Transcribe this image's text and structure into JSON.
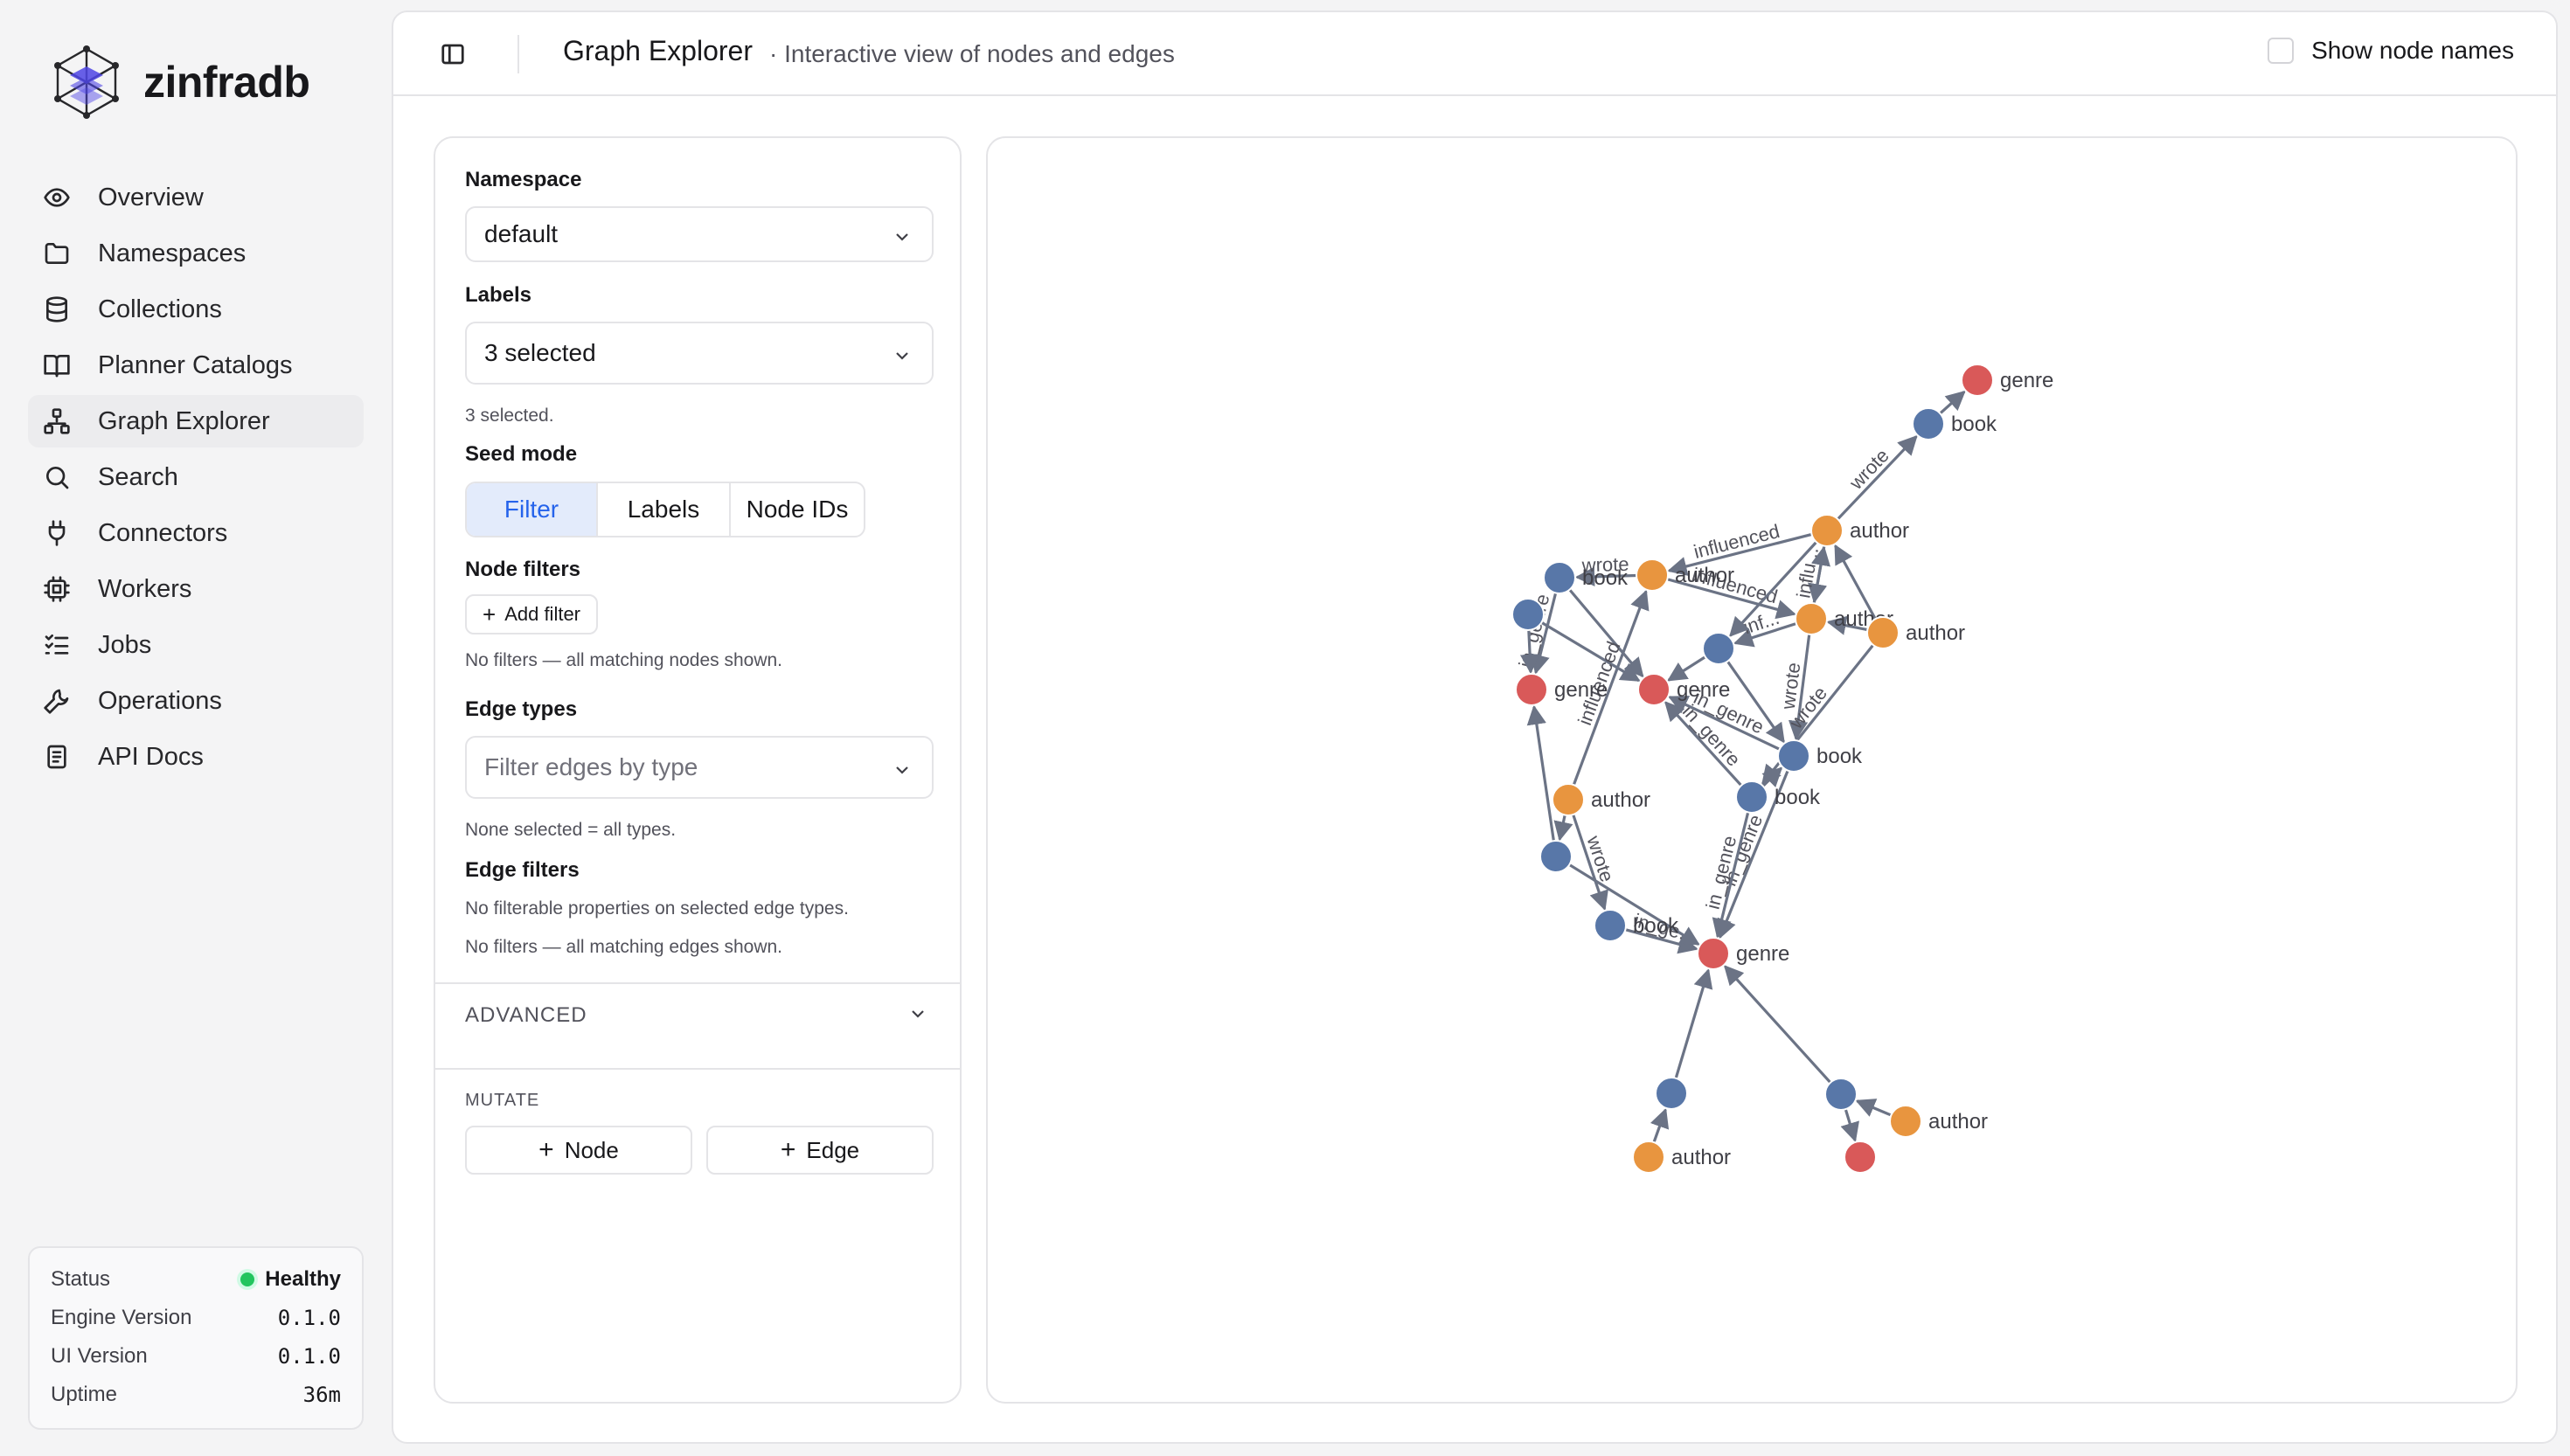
{
  "brand": {
    "name": "zinfradb"
  },
  "nav": [
    {
      "label": "Overview",
      "icon": "eye-icon"
    },
    {
      "label": "Namespaces",
      "icon": "folder-icon"
    },
    {
      "label": "Collections",
      "icon": "database-icon"
    },
    {
      "label": "Planner Catalogs",
      "icon": "book-open-icon"
    },
    {
      "label": "Graph Explorer",
      "icon": "network-icon",
      "active": true
    },
    {
      "label": "Search",
      "icon": "search-icon"
    },
    {
      "label": "Connectors",
      "icon": "plug-icon"
    },
    {
      "label": "Workers",
      "icon": "cpu-icon"
    },
    {
      "label": "Jobs",
      "icon": "list-checks-icon"
    },
    {
      "label": "Operations",
      "icon": "wrench-icon"
    },
    {
      "label": "API Docs",
      "icon": "document-icon"
    }
  ],
  "status": {
    "status_label": "Status",
    "status_value": "Healthy",
    "engine_label": "Engine Version",
    "engine_value": "0.1.0",
    "ui_label": "UI Version",
    "ui_value": "0.1.0",
    "uptime_label": "Uptime",
    "uptime_value": "36m"
  },
  "header": {
    "title": "Graph Explorer",
    "subtitle": "· Interactive view of nodes and edges",
    "show_names_label": "Show node names",
    "show_names_checked": false
  },
  "controls": {
    "namespace_label": "Namespace",
    "namespace_value": "default",
    "labels_label": "Labels",
    "labels_value": "3 selected",
    "labels_hint": "3 selected.",
    "seed_mode_label": "Seed mode",
    "seed_modes": [
      "Filter",
      "Labels",
      "Node IDs"
    ],
    "seed_mode_selected": "Filter",
    "node_filters_label": "Node filters",
    "add_filter_label": "Add filter",
    "node_filters_hint": "No filters — all matching nodes shown.",
    "edge_types_label": "Edge types",
    "edge_types_placeholder": "Filter edges by type",
    "edge_types_hint": "None selected = all types.",
    "edge_filters_label": "Edge filters",
    "edge_filters_hint1": "No filterable properties on selected edge types.",
    "edge_filters_hint2": "No filters — all matching edges shown.",
    "advanced_label": "ADVANCED",
    "mutate_label": "MUTATE",
    "add_node_label": "Node",
    "add_edge_label": "Edge"
  },
  "graph": {
    "colors": {
      "genre": "#d95959",
      "book": "#5877a8",
      "author": "#e8953f",
      "edge": "#6b7385"
    },
    "nodes": [
      {
        "id": "n1",
        "type": "genre",
        "label": "genre"
      },
      {
        "id": "n2",
        "type": "book",
        "label": "book"
      },
      {
        "id": "n3",
        "type": "author",
        "label": "author"
      },
      {
        "id": "n4",
        "type": "author",
        "label": "author"
      },
      {
        "id": "n5",
        "type": "author",
        "label": "author"
      },
      {
        "id": "n6",
        "type": "book",
        "label": "book"
      },
      {
        "id": "n7",
        "type": "author",
        "label": "author"
      },
      {
        "id": "n8",
        "type": "book",
        "label": ""
      },
      {
        "id": "n9",
        "type": "genre",
        "label": "genre"
      },
      {
        "id": "n10",
        "type": "genre",
        "label": "genre"
      },
      {
        "id": "n11",
        "type": "book",
        "label": ""
      },
      {
        "id": "n12",
        "type": "book",
        "label": "book"
      },
      {
        "id": "n13",
        "type": "book",
        "label": "book"
      },
      {
        "id": "n14",
        "type": "author",
        "label": "author"
      },
      {
        "id": "n15",
        "type": "book",
        "label": ""
      },
      {
        "id": "n16",
        "type": "book",
        "label": "book"
      },
      {
        "id": "n17",
        "type": "genre",
        "label": "genre"
      },
      {
        "id": "n18",
        "type": "book",
        "label": ""
      },
      {
        "id": "n19",
        "type": "author",
        "label": "author"
      },
      {
        "id": "n20",
        "type": "book",
        "label": ""
      },
      {
        "id": "n21",
        "type": "author",
        "label": "author"
      },
      {
        "id": "n22",
        "type": "genre",
        "label": ""
      }
    ],
    "edges": [
      {
        "from": "n2",
        "to": "n1",
        "label": ""
      },
      {
        "from": "n3",
        "to": "n2",
        "label": "wrote"
      },
      {
        "from": "n3",
        "to": "n7",
        "label": "influenced"
      },
      {
        "from": "n3",
        "to": "n4",
        "label": "influ..."
      },
      {
        "from": "n4",
        "to": "n3",
        "label": ""
      },
      {
        "from": "n5",
        "to": "n4",
        "label": ""
      },
      {
        "from": "n5",
        "to": "n3",
        "label": ""
      },
      {
        "from": "n4",
        "to": "n12",
        "label": "wrote"
      },
      {
        "from": "n5",
        "to": "n13",
        "label": "wrote"
      },
      {
        "from": "n7",
        "to": "n6",
        "label": "wrote"
      },
      {
        "from": "n7",
        "to": "n4",
        "label": "influenced"
      },
      {
        "from": "n4",
        "to": "n8",
        "label": "inf..."
      },
      {
        "from": "n3",
        "to": "n8",
        "label": ""
      },
      {
        "from": "n6",
        "to": "n9",
        "label": "in_genre"
      },
      {
        "from": "n6",
        "to": "n10",
        "label": ""
      },
      {
        "from": "n11",
        "to": "n9",
        "label": ""
      },
      {
        "from": "n11",
        "to": "n10",
        "label": ""
      },
      {
        "from": "n8",
        "to": "n10",
        "label": ""
      },
      {
        "from": "n8",
        "to": "n12",
        "label": ""
      },
      {
        "from": "n13",
        "to": "n10",
        "label": "in_genre"
      },
      {
        "from": "n12",
        "to": "n10",
        "label": "in_genre"
      },
      {
        "from": "n13",
        "to": "n12",
        "label": ""
      },
      {
        "from": "n14",
        "to": "n7",
        "label": "influenced"
      },
      {
        "from": "n14",
        "to": "n15",
        "label": ""
      },
      {
        "from": "n15",
        "to": "n9",
        "label": ""
      },
      {
        "from": "n14",
        "to": "n16",
        "label": "wrote"
      },
      {
        "from": "n16",
        "to": "n17",
        "label": "in_ge..."
      },
      {
        "from": "n12",
        "to": "n17",
        "label": "in_genre"
      },
      {
        "from": "n13",
        "to": "n17",
        "label": "in_genre"
      },
      {
        "from": "n15",
        "to": "n17",
        "label": ""
      },
      {
        "from": "n18",
        "to": "n17",
        "label": ""
      },
      {
        "from": "n19",
        "to": "n18",
        "label": ""
      },
      {
        "from": "n20",
        "to": "n17",
        "label": ""
      },
      {
        "from": "n21",
        "to": "n20",
        "label": ""
      },
      {
        "from": "n20",
        "to": "n22",
        "label": ""
      }
    ]
  }
}
